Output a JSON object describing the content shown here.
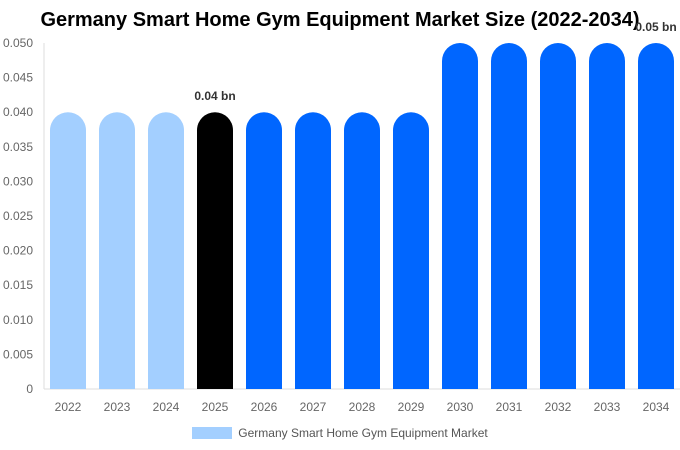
{
  "chart_data": {
    "type": "bar",
    "title": "Germany Smart Home Gym Equipment Market Size (2022-2034)",
    "categories": [
      "2022",
      "2023",
      "2024",
      "2025",
      "2026",
      "2027",
      "2028",
      "2029",
      "2030",
      "2031",
      "2032",
      "2033",
      "2034"
    ],
    "series": [
      {
        "name": "Germany Smart Home Gym Equipment Market",
        "values": [
          0.04,
          0.04,
          0.04,
          0.04,
          0.04,
          0.04,
          0.04,
          0.04,
          0.05,
          0.05,
          0.05,
          0.05,
          0.05
        ]
      }
    ],
    "bar_colors": [
      "#a3cfff",
      "#a3cfff",
      "#a3cfff",
      "#000000",
      "#0066ff",
      "#0066ff",
      "#0066ff",
      "#0066ff",
      "#0066ff",
      "#0066ff",
      "#0066ff",
      "#0066ff",
      "#0066ff"
    ],
    "data_labels": [
      {
        "index": 3,
        "text": "0.04 bn"
      },
      {
        "index": 12,
        "text": "0.05 bn"
      }
    ],
    "ylim": [
      0,
      0.05
    ],
    "yticks": [
      "0",
      "0.005",
      "0.010",
      "0.015",
      "0.020",
      "0.025",
      "0.030",
      "0.035",
      "0.040",
      "0.045",
      "0.050"
    ],
    "grid": false,
    "legend": "bottom",
    "legend_color": "#a3cfff"
  }
}
